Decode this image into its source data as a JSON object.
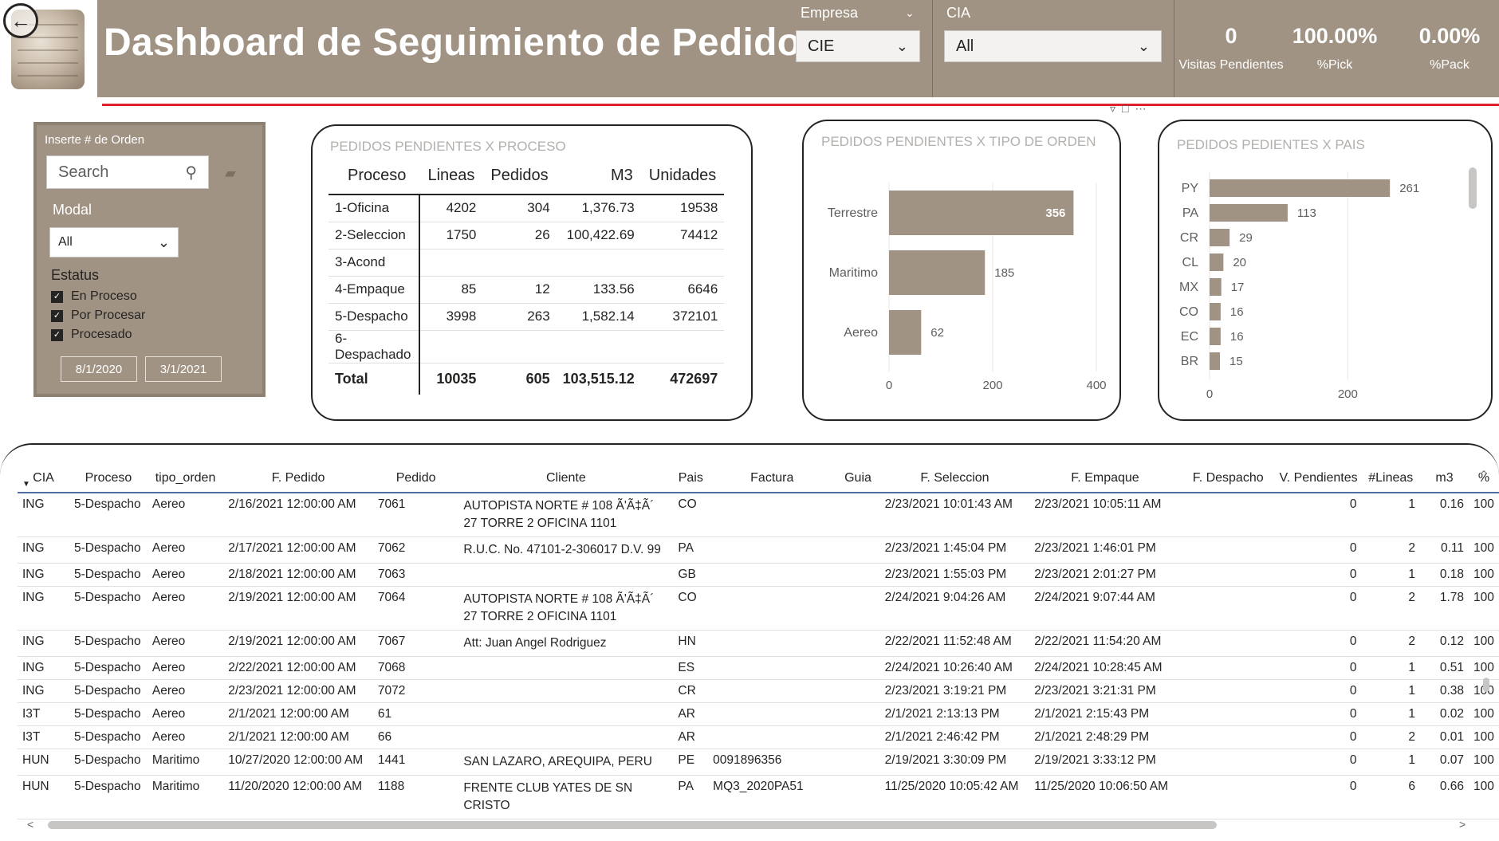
{
  "header": {
    "title": "Dashboard de Seguimiento de Pedidos",
    "empresa": {
      "label": "Empresa",
      "value": "CIE"
    },
    "cia": {
      "label": "CIA",
      "value": "All"
    },
    "kpis": [
      {
        "value": "0",
        "label": "Visitas Pendientes"
      },
      {
        "value": "100.00%",
        "label": "%Pick"
      },
      {
        "value": "0.00%",
        "label": "%Pack"
      }
    ],
    "colors": {
      "brand": "#a09383",
      "accent_line": "#e0202c",
      "bar": "#a09383"
    }
  },
  "filters": {
    "order_label": "Inserte # de Orden",
    "search_placeholder": "Search",
    "modal_label": "Modal",
    "modal_value": "All",
    "estatus_label": "Estatus",
    "estatus_items": [
      "En Proceso",
      "Por Procesar",
      "Procesado"
    ],
    "date_from": "8/1/2020",
    "date_to": "3/1/2021"
  },
  "process_matrix": {
    "title": "PEDIDOS PENDIENTES X PROCESO",
    "columns": [
      "Proceso",
      "Lineas",
      "Pedidos",
      "M3",
      "Unidades"
    ],
    "rows": [
      [
        "1-Oficina",
        "4202",
        "304",
        "1,376.73",
        "19538"
      ],
      [
        "2-Seleccion",
        "1750",
        "26",
        "100,422.69",
        "74412"
      ],
      [
        "3-Acond",
        "",
        "",
        "",
        ""
      ],
      [
        "4-Empaque",
        "85",
        "12",
        "133.56",
        "6646"
      ],
      [
        "5-Despacho",
        "3998",
        "263",
        "1,582.14",
        "372101"
      ],
      [
        "6-Despachado",
        "",
        "",
        "",
        ""
      ]
    ],
    "total": [
      "Total",
      "10035",
      "605",
      "103,515.12",
      "472697"
    ]
  },
  "chart_tipo": {
    "title": "PEDIDOS PENDIENTES X TIPO DE ORDEN",
    "chart_data": {
      "type": "bar",
      "orientation": "horizontal",
      "categories": [
        "Terrestre",
        "Maritimo",
        "Aereo"
      ],
      "values": [
        356,
        185,
        62
      ],
      "xlim": [
        0,
        400
      ],
      "xticks": [
        "0",
        "200",
        "400"
      ]
    }
  },
  "chart_pais": {
    "title": "PEDIDOS PEDIENTES X PAIS",
    "chart_data": {
      "type": "bar",
      "orientation": "horizontal",
      "categories": [
        "PY",
        "PA",
        "CR",
        "CL",
        "MX",
        "CO",
        "EC",
        "BR"
      ],
      "values": [
        261,
        113,
        29,
        20,
        17,
        16,
        16,
        15
      ],
      "xlim": [
        0,
        300
      ],
      "xticks": [
        "0",
        "200"
      ]
    }
  },
  "detail": {
    "columns": [
      "CIA",
      "Proceso",
      "tipo_orden",
      "F. Pedido",
      "Pedido",
      "Cliente",
      "Pais",
      "Factura",
      "Guia",
      "F. Seleccion",
      "F. Empaque",
      "F. Despacho",
      "V. Pendientes",
      "#Lineas",
      "m3",
      "%"
    ],
    "rows": [
      [
        "ING",
        "5-Despacho",
        "Aereo",
        "2/16/2021 12:00:00 AM",
        "7061",
        "AUTOPISTA NORTE # 108 Ã'Ã‡Ã´ 27 TORRE 2 OFICINA 1101",
        "CO",
        "",
        "",
        "2/23/2021 10:01:43 AM",
        "2/23/2021 10:05:11 AM",
        "",
        "0",
        "1",
        "0.16",
        "100"
      ],
      [
        "ING",
        "5-Despacho",
        "Aereo",
        "2/17/2021 12:00:00 AM",
        "7062",
        "R.U.C. No. 47101-2-306017 D.V. 99",
        "PA",
        "",
        "",
        "2/23/2021 1:45:04 PM",
        "2/23/2021 1:46:01 PM",
        "",
        "0",
        "2",
        "0.11",
        "100"
      ],
      [
        "ING",
        "5-Despacho",
        "Aereo",
        "2/18/2021 12:00:00 AM",
        "7063",
        "",
        "GB",
        "",
        "",
        "2/23/2021 1:55:03 PM",
        "2/23/2021 2:01:27 PM",
        "",
        "0",
        "1",
        "0.18",
        "100"
      ],
      [
        "ING",
        "5-Despacho",
        "Aereo",
        "2/19/2021 12:00:00 AM",
        "7064",
        "AUTOPISTA NORTE # 108 Ã'Ã‡Ã´ 27 TORRE 2 OFICINA 1101",
        "CO",
        "",
        "",
        "2/24/2021 9:04:26 AM",
        "2/24/2021 9:07:44 AM",
        "",
        "0",
        "2",
        "1.78",
        "100"
      ],
      [
        "ING",
        "5-Despacho",
        "Aereo",
        "2/19/2021 12:00:00 AM",
        "7067",
        "Att: Juan Angel Rodriguez",
        "HN",
        "",
        "",
        "2/22/2021 11:52:48 AM",
        "2/22/2021 11:54:20 AM",
        "",
        "0",
        "2",
        "0.12",
        "100"
      ],
      [
        "ING",
        "5-Despacho",
        "Aereo",
        "2/22/2021 12:00:00 AM",
        "7068",
        "",
        "ES",
        "",
        "",
        "2/24/2021 10:26:40 AM",
        "2/24/2021 10:28:45 AM",
        "",
        "0",
        "1",
        "0.51",
        "100"
      ],
      [
        "ING",
        "5-Despacho",
        "Aereo",
        "2/23/2021 12:00:00 AM",
        "7072",
        "",
        "CR",
        "",
        "",
        "2/23/2021 3:19:21 PM",
        "2/23/2021 3:21:31 PM",
        "",
        "0",
        "1",
        "0.38",
        "100"
      ],
      [
        "I3T",
        "5-Despacho",
        "Aereo",
        "2/1/2021 12:00:00 AM",
        "61",
        "",
        "AR",
        "",
        "",
        "2/1/2021 2:13:13 PM",
        "2/1/2021 2:15:43 PM",
        "",
        "0",
        "1",
        "0.02",
        "100"
      ],
      [
        "I3T",
        "5-Despacho",
        "Aereo",
        "2/1/2021 12:00:00 AM",
        "66",
        "",
        "AR",
        "",
        "",
        "2/1/2021 2:46:42 PM",
        "2/1/2021 2:48:29 PM",
        "",
        "0",
        "2",
        "0.01",
        "100"
      ],
      [
        "HUN",
        "5-Despacho",
        "Maritimo",
        "10/27/2020 12:00:00 AM",
        "1441",
        "SAN LAZARO, AREQUIPA, PERU",
        "PE",
        "0091896356",
        "",
        "2/19/2021 3:30:09 PM",
        "2/19/2021 3:33:12 PM",
        "",
        "0",
        "1",
        "0.07",
        "100"
      ],
      [
        "HUN",
        "5-Despacho",
        "Maritimo",
        "11/20/2020 12:00:00 AM",
        "1188",
        "FRENTE CLUB YATES DE SN CRISTO",
        "PA",
        "MQ3_2020PA51",
        "",
        "11/25/2020 10:05:42 AM",
        "11/25/2020 10:06:50 AM",
        "",
        "0",
        "6",
        "0.66",
        "100"
      ]
    ]
  }
}
